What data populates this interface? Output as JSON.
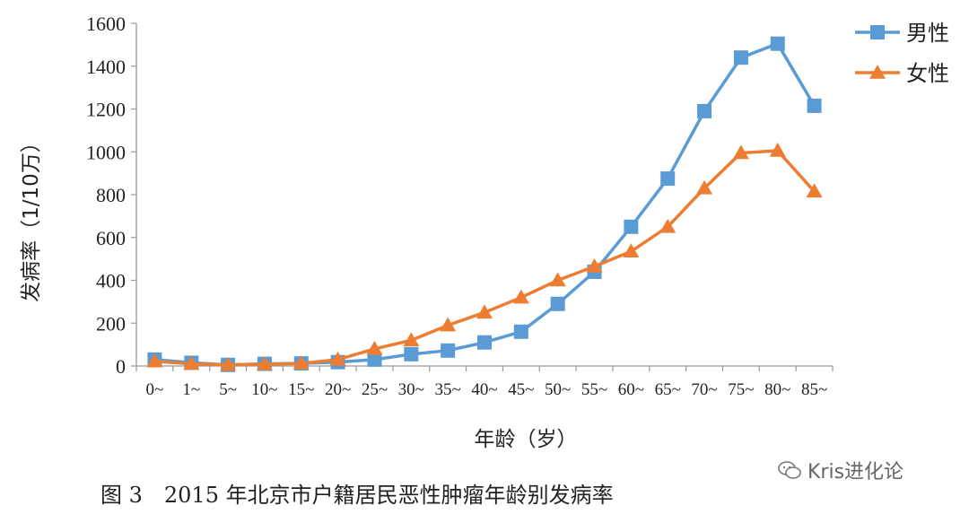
{
  "chart_data": {
    "type": "line",
    "categories": [
      "0~",
      "1~",
      "5~",
      "10~",
      "15~",
      "20~",
      "25~",
      "30~",
      "35~",
      "40~",
      "45~",
      "50~",
      "55~",
      "60~",
      "65~",
      "70~",
      "75~",
      "80~",
      "85~"
    ],
    "series": [
      {
        "name": "男性",
        "color": "#5B9BD5",
        "marker": "square",
        "values": [
          30,
          15,
          5,
          10,
          12,
          18,
          30,
          55,
          72,
          110,
          160,
          290,
          440,
          650,
          875,
          1190,
          1440,
          1505,
          1215
        ]
      },
      {
        "name": "女性",
        "color": "#ED7D31",
        "marker": "triangle",
        "values": [
          22,
          10,
          5,
          8,
          12,
          30,
          80,
          120,
          190,
          250,
          320,
          400,
          465,
          535,
          650,
          830,
          995,
          1005,
          815
        ]
      }
    ],
    "yticks": [
      "0",
      "200",
      "400",
      "600",
      "800",
      "1000",
      "1200",
      "1400",
      "1600"
    ],
    "ylim": [
      0,
      1600
    ],
    "xlabel": "年龄（岁）",
    "ylabel": "发病率（1/10万）",
    "grid": false,
    "legend_position": "top-right"
  },
  "caption": "图 3　2015 年北京市户籍居民恶性肿瘤年龄别发病率",
  "watermark": "Kris进化论"
}
